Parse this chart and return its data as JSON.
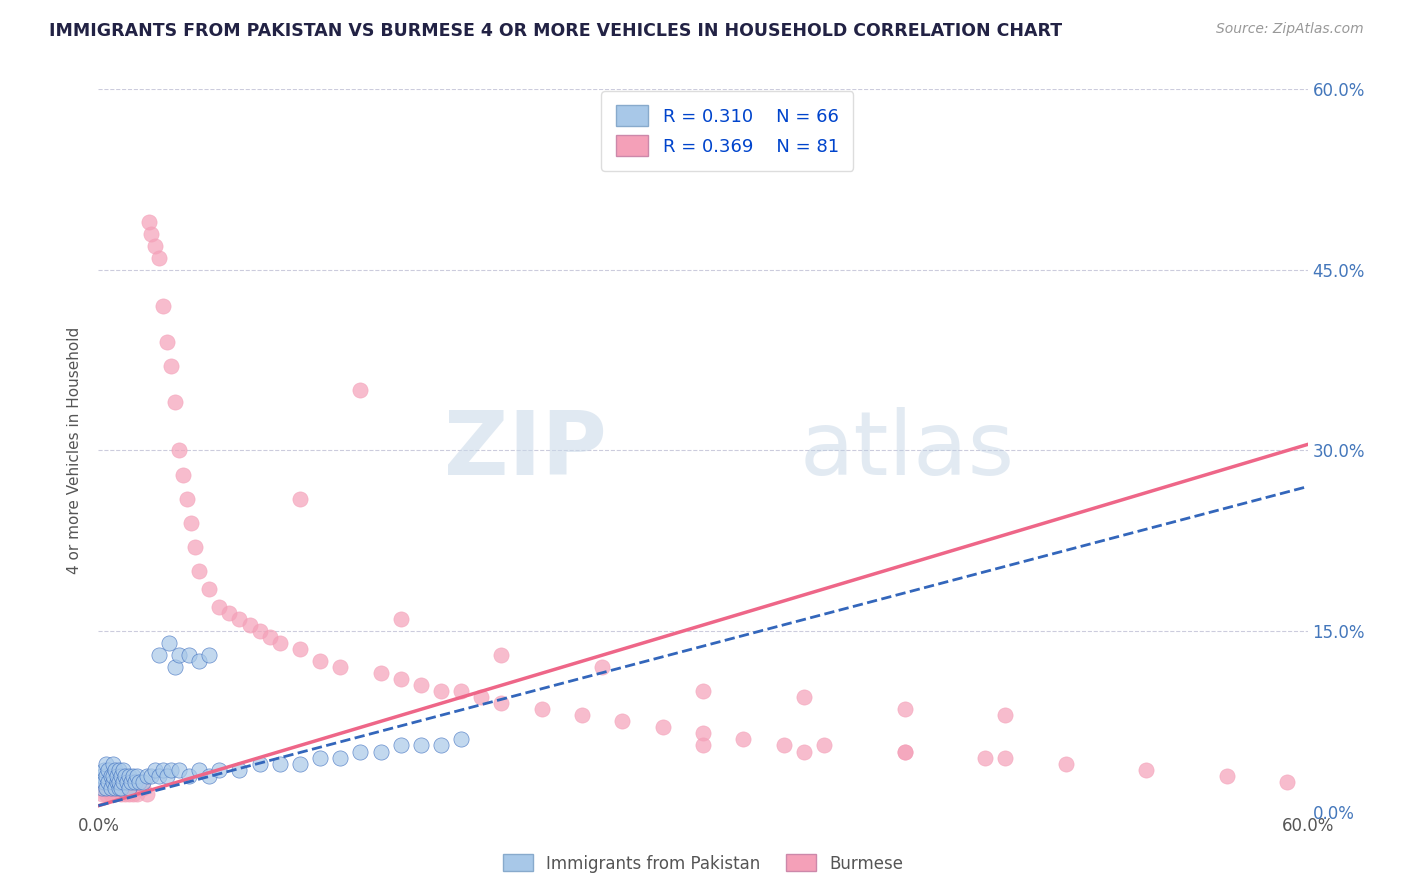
{
  "title": "IMMIGRANTS FROM PAKISTAN VS BURMESE 4 OR MORE VEHICLES IN HOUSEHOLD CORRELATION CHART",
  "source": "Source: ZipAtlas.com",
  "ylabel": "4 or more Vehicles in Household",
  "xlim": [
    0.0,
    0.6
  ],
  "ylim": [
    0.0,
    0.6
  ],
  "ytick_values": [
    0.0,
    0.15,
    0.3,
    0.45,
    0.6
  ],
  "hgrid_values": [
    0.15,
    0.3,
    0.45,
    0.6
  ],
  "series1_color": "#a8c8e8",
  "series2_color": "#f4a0b8",
  "series1_line_color": "#3366bb",
  "series2_line_color": "#ee6688",
  "series1_R": 0.31,
  "series1_N": 66,
  "series2_R": 0.369,
  "series2_N": 81,
  "legend_label1": "Immigrants from Pakistan",
  "legend_label2": "Burmese",
  "title_color": "#222244",
  "axis_label_color": "#4477bb",
  "legend_text_color": "#0044cc",
  "watermark_color": "#d0dff0",
  "series1_x": [
    0.002,
    0.002,
    0.003,
    0.003,
    0.004,
    0.004,
    0.004,
    0.005,
    0.005,
    0.006,
    0.006,
    0.007,
    0.007,
    0.007,
    0.008,
    0.008,
    0.009,
    0.009,
    0.01,
    0.01,
    0.01,
    0.011,
    0.011,
    0.012,
    0.012,
    0.013,
    0.014,
    0.015,
    0.015,
    0.016,
    0.017,
    0.018,
    0.019,
    0.02,
    0.022,
    0.024,
    0.026,
    0.028,
    0.03,
    0.032,
    0.034,
    0.036,
    0.038,
    0.04,
    0.045,
    0.05,
    0.055,
    0.06,
    0.07,
    0.08,
    0.09,
    0.1,
    0.11,
    0.12,
    0.13,
    0.14,
    0.15,
    0.16,
    0.17,
    0.18,
    0.03,
    0.035,
    0.04,
    0.045,
    0.05,
    0.055
  ],
  "series1_y": [
    0.02,
    0.03,
    0.025,
    0.035,
    0.02,
    0.03,
    0.04,
    0.025,
    0.035,
    0.02,
    0.03,
    0.025,
    0.03,
    0.04,
    0.02,
    0.035,
    0.025,
    0.03,
    0.02,
    0.025,
    0.035,
    0.02,
    0.03,
    0.025,
    0.035,
    0.03,
    0.025,
    0.02,
    0.03,
    0.025,
    0.03,
    0.025,
    0.03,
    0.025,
    0.025,
    0.03,
    0.03,
    0.035,
    0.03,
    0.035,
    0.03,
    0.035,
    0.12,
    0.035,
    0.03,
    0.035,
    0.03,
    0.035,
    0.035,
    0.04,
    0.04,
    0.04,
    0.045,
    0.045,
    0.05,
    0.05,
    0.055,
    0.055,
    0.055,
    0.06,
    0.13,
    0.14,
    0.13,
    0.13,
    0.125,
    0.13
  ],
  "series2_x": [
    0.002,
    0.003,
    0.004,
    0.005,
    0.005,
    0.006,
    0.007,
    0.008,
    0.009,
    0.01,
    0.011,
    0.012,
    0.013,
    0.014,
    0.015,
    0.016,
    0.017,
    0.018,
    0.019,
    0.02,
    0.022,
    0.024,
    0.025,
    0.026,
    0.028,
    0.03,
    0.032,
    0.034,
    0.036,
    0.038,
    0.04,
    0.042,
    0.044,
    0.046,
    0.048,
    0.05,
    0.055,
    0.06,
    0.065,
    0.07,
    0.075,
    0.08,
    0.085,
    0.09,
    0.1,
    0.11,
    0.12,
    0.13,
    0.14,
    0.15,
    0.16,
    0.17,
    0.18,
    0.19,
    0.2,
    0.22,
    0.24,
    0.26,
    0.28,
    0.3,
    0.32,
    0.34,
    0.36,
    0.4,
    0.44,
    0.48,
    0.52,
    0.56,
    0.59,
    0.1,
    0.15,
    0.2,
    0.25,
    0.3,
    0.35,
    0.4,
    0.45,
    0.3,
    0.35,
    0.4,
    0.45
  ],
  "series2_y": [
    0.015,
    0.02,
    0.015,
    0.02,
    0.025,
    0.015,
    0.02,
    0.015,
    0.02,
    0.02,
    0.015,
    0.02,
    0.015,
    0.02,
    0.015,
    0.02,
    0.015,
    0.02,
    0.015,
    0.02,
    0.02,
    0.015,
    0.49,
    0.48,
    0.47,
    0.46,
    0.42,
    0.39,
    0.37,
    0.34,
    0.3,
    0.28,
    0.26,
    0.24,
    0.22,
    0.2,
    0.185,
    0.17,
    0.165,
    0.16,
    0.155,
    0.15,
    0.145,
    0.14,
    0.135,
    0.125,
    0.12,
    0.35,
    0.115,
    0.11,
    0.105,
    0.1,
    0.1,
    0.095,
    0.09,
    0.085,
    0.08,
    0.075,
    0.07,
    0.065,
    0.06,
    0.055,
    0.055,
    0.05,
    0.045,
    0.04,
    0.035,
    0.03,
    0.025,
    0.26,
    0.16,
    0.13,
    0.12,
    0.1,
    0.095,
    0.085,
    0.08,
    0.055,
    0.05,
    0.05,
    0.045
  ]
}
